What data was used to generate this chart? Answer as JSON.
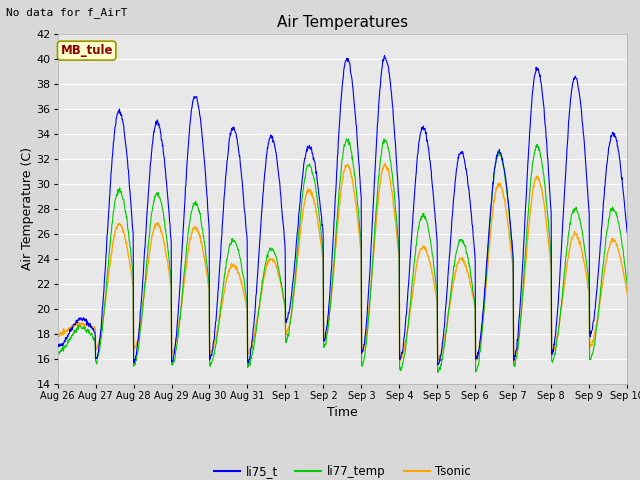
{
  "title": "Air Temperatures",
  "top_left_text": "No data for f_AirT",
  "xlabel": "Time",
  "ylabel": "Air Temperature (C)",
  "ylim": [
    14,
    42
  ],
  "yticks": [
    14,
    16,
    18,
    20,
    22,
    24,
    26,
    28,
    30,
    32,
    34,
    36,
    38,
    40,
    42
  ],
  "fig_bg_color": "#d8d8d8",
  "plot_bg_color": "#e8e8e8",
  "grid_color": "white",
  "legend_entries": [
    "li75_t",
    "li77_temp",
    "Tsonic"
  ],
  "station_label": "MB_tule",
  "station_label_color": "#8b0000",
  "station_box_fill": "#ffffcc",
  "station_box_edge": "#999900",
  "x_tick_labels": [
    "Aug 26",
    "Aug 27",
    "Aug 28",
    "Aug 29",
    "Aug 30",
    "Aug 31",
    "Sep 1",
    "Sep 2",
    "Sep 3",
    "Sep 4",
    "Sep 5",
    "Sep 6",
    "Sep 7",
    "Sep 8",
    "Sep 9",
    "Sep 10"
  ],
  "num_days": 15,
  "li75_t_peaks": [
    19.2,
    35.8,
    34.9,
    37.0,
    34.5,
    33.8,
    33.0,
    40.0,
    40.1,
    34.5,
    32.5,
    32.5,
    39.2,
    38.5,
    34.0
  ],
  "li75_t_mins": [
    17.0,
    16.0,
    15.8,
    15.8,
    16.0,
    15.8,
    19.0,
    17.5,
    16.5,
    16.0,
    15.5,
    16.0,
    16.0,
    16.5,
    18.0
  ],
  "li77_peaks": [
    18.5,
    29.5,
    29.2,
    28.5,
    25.5,
    24.8,
    31.5,
    33.5,
    33.5,
    27.5,
    25.5,
    32.5,
    33.0,
    28.0,
    28.0
  ],
  "li77_mins": [
    16.5,
    15.8,
    15.5,
    15.5,
    15.5,
    15.5,
    17.5,
    17.0,
    15.5,
    15.0,
    15.0,
    15.0,
    15.5,
    15.8,
    16.0
  ],
  "tsonic_peaks": [
    18.8,
    26.8,
    26.8,
    26.5,
    23.5,
    24.0,
    29.5,
    31.5,
    31.5,
    25.0,
    24.0,
    30.0,
    30.5,
    26.0,
    25.5
  ],
  "tsonic_mins": [
    18.0,
    16.8,
    16.8,
    16.5,
    16.5,
    16.5,
    18.0,
    17.5,
    16.5,
    16.0,
    16.0,
    16.0,
    16.0,
    16.5,
    17.0
  ],
  "line_width": 0.8
}
